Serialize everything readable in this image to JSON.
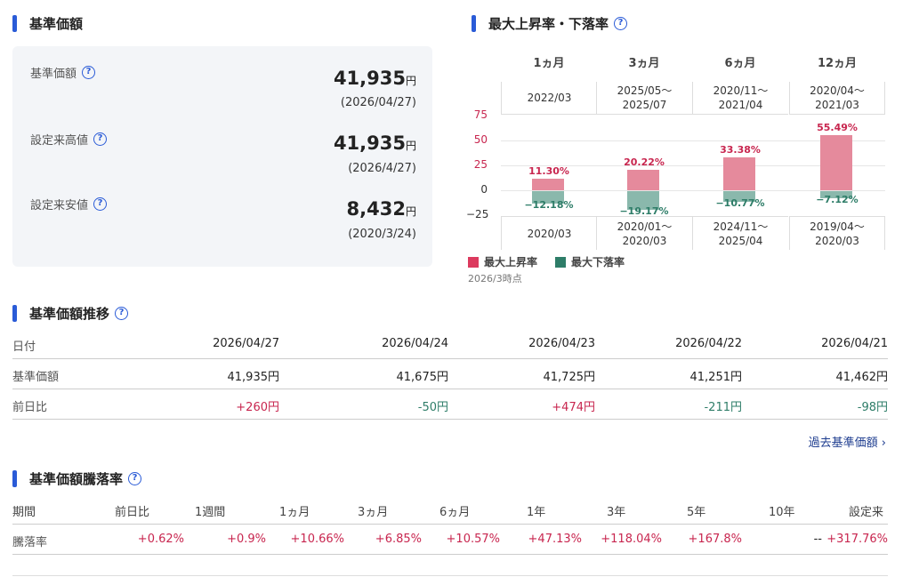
{
  "nav_section": {
    "title": "基準価額",
    "help": "?",
    "items": [
      {
        "label": "基準価額",
        "value": "41,935",
        "unit": "円",
        "date": "(2026/04/27)"
      },
      {
        "label": "設定来高値",
        "value": "41,935",
        "unit": "円",
        "date": "(2026/4/27)"
      },
      {
        "label": "設定来安値",
        "value": "8,432",
        "unit": "円",
        "date": "(2020/3/24)"
      }
    ]
  },
  "chart_data": {
    "type": "bar",
    "title": "最大上昇率・下落率",
    "help": "?",
    "categories": [
      "1ヵ月",
      "3ヵ月",
      "6ヵ月",
      "12ヵ月"
    ],
    "ylim": [
      -25,
      75
    ],
    "yticks": [
      "75",
      "50",
      "25",
      "0",
      "−25"
    ],
    "ytick_values": [
      75,
      50,
      25,
      0,
      -25
    ],
    "grid": true,
    "series": [
      {
        "name": "最大上昇率",
        "color": "#dc3a5e",
        "values": [
          11.3,
          20.22,
          33.38,
          55.49
        ],
        "labels": [
          "11.30%",
          "20.22%",
          "33.38%",
          "55.49%"
        ],
        "periods": [
          [
            "2022/03"
          ],
          [
            "2025/05〜",
            "2025/07"
          ],
          [
            "2020/11〜",
            "2021/04"
          ],
          [
            "2020/04〜",
            "2021/03"
          ]
        ]
      },
      {
        "name": "最大下落率",
        "color": "#2e7d68",
        "values": [
          -12.18,
          -19.17,
          -10.77,
          -7.12
        ],
        "labels": [
          "−12.18%",
          "−19.17%",
          "−10.77%",
          "−7.12%"
        ],
        "periods": [
          [
            "2020/03"
          ],
          [
            "2020/01〜",
            "2020/03"
          ],
          [
            "2024/11〜",
            "2025/04"
          ],
          [
            "2019/04〜",
            "2020/03"
          ]
        ]
      }
    ],
    "legend": "bottom-left",
    "note": "2026/3時点"
  },
  "history": {
    "title": "基準価額推移",
    "help": "?",
    "headers": [
      "日付",
      "2026/04/27",
      "2026/04/24",
      "2026/04/23",
      "2026/04/22",
      "2026/04/21"
    ],
    "rows": [
      {
        "label": "基準価額",
        "cells": [
          "41,935円",
          "41,675円",
          "41,725円",
          "41,251円",
          "41,462円"
        ]
      },
      {
        "label": "前日比",
        "cells": [
          "+260円",
          "-50円",
          "+474円",
          "-211円",
          "-98円"
        ]
      }
    ],
    "link": "過去基準価額"
  },
  "returns": {
    "title": "基準価額騰落率",
    "help": "?",
    "headers": [
      "期間",
      "前日比",
      "1週間",
      "1ヵ月",
      "3ヵ月",
      "6ヵ月",
      "1年",
      "3年",
      "5年",
      "10年",
      "設定来"
    ],
    "row_label": "騰落率",
    "cells": [
      "+0.62%",
      "+0.9%",
      "+10.66%",
      "+6.85%",
      "+10.57%",
      "+47.13%",
      "+118.04%",
      "+167.8%",
      "--",
      "+317.76%"
    ]
  }
}
